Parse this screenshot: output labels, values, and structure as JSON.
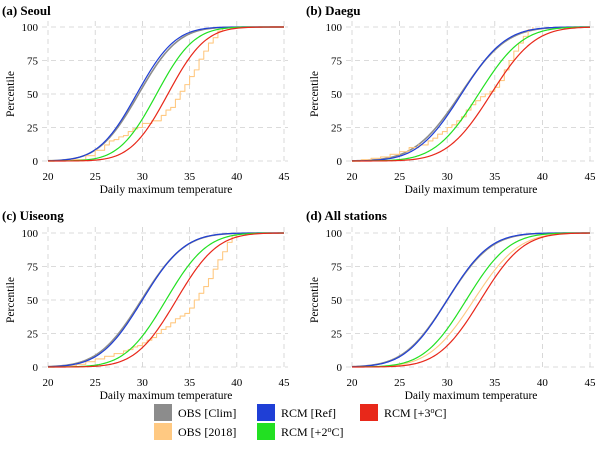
{
  "chart_data": {
    "type": "line",
    "xlabel": "Daily maximum temperature",
    "ylabel": "Percentile",
    "xlim": [
      20,
      45
    ],
    "ylim": [
      0,
      100
    ],
    "xticks": [
      20,
      25,
      30,
      35,
      40,
      45
    ],
    "yticks": [
      0,
      25,
      50,
      75,
      100
    ],
    "grid": true,
    "legend_position": "bottom",
    "legend": [
      {
        "key": "obs_clim",
        "label": "OBS [Clim]",
        "color": "#8c8c8c"
      },
      {
        "key": "obs_2018",
        "label": "OBS [2018]",
        "color": "#ffc982"
      },
      {
        "key": "rcm_ref",
        "label": "RCM [Ref]",
        "color": "#1f3fd6"
      },
      {
        "key": "rcm_2c",
        "label": "RCM [+2°C]",
        "label_main": "RCM [+2",
        "label_sup": "o",
        "label_end": "C]",
        "color": "#22e022"
      },
      {
        "key": "rcm_3c",
        "label": "RCM [+3°C]",
        "label_main": "RCM [+3",
        "label_sup": "o",
        "label_end": "C]",
        "color": "#e8281a"
      }
    ],
    "panels": [
      {
        "title": "(a) Seoul",
        "series": {
          "obs_clim": {
            "mean": 29.6,
            "sd": 3.3
          },
          "rcm_ref": {
            "mean": 29.4,
            "sd": 3.2
          },
          "rcm_2c": {
            "mean": 31.5,
            "sd": 3.1
          },
          "rcm_3c": {
            "mean": 32.7,
            "sd": 3.1
          },
          "obs_2018": {
            "points": [
              [
                21,
                0
              ],
              [
                22.5,
                1
              ],
              [
                24,
                4
              ],
              [
                25,
                8
              ],
              [
                26,
                12
              ],
              [
                26.5,
                15
              ],
              [
                27,
                16
              ],
              [
                27.5,
                18
              ],
              [
                28,
                19
              ],
              [
                28.5,
                22
              ],
              [
                29,
                24
              ],
              [
                29.5,
                25
              ],
              [
                30,
                28
              ],
              [
                30.5,
                28
              ],
              [
                31,
                30
              ],
              [
                31.5,
                30
              ],
              [
                32,
                34
              ],
              [
                32.5,
                38
              ],
              [
                33,
                40
              ],
              [
                33.5,
                46
              ],
              [
                34,
                52
              ],
              [
                34.5,
                57
              ],
              [
                35,
                63
              ],
              [
                35.5,
                68
              ],
              [
                36,
                76
              ],
              [
                36.5,
                82
              ],
              [
                37,
                88
              ],
              [
                37.5,
                92
              ],
              [
                38,
                97
              ],
              [
                38.5,
                99
              ],
              [
                39,
                100
              ]
            ]
          }
        }
      },
      {
        "title": "(b) Daegu",
        "series": {
          "obs_clim": {
            "mean": 31.4,
            "sd": 3.8
          },
          "rcm_ref": {
            "mean": 31.5,
            "sd": 3.6
          },
          "rcm_2c": {
            "mean": 33.3,
            "sd": 3.6
          },
          "rcm_3c": {
            "mean": 34.6,
            "sd": 3.6
          },
          "obs_2018": {
            "points": [
              [
                20.5,
                0
              ],
              [
                21,
                1
              ],
              [
                22,
                2
              ],
              [
                23,
                3
              ],
              [
                24,
                5
              ],
              [
                25,
                7
              ],
              [
                26,
                10
              ],
              [
                27,
                12
              ],
              [
                27.5,
                12
              ],
              [
                28,
                15
              ],
              [
                28.5,
                17
              ],
              [
                29,
                20
              ],
              [
                29.5,
                22
              ],
              [
                30,
                25
              ],
              [
                30.5,
                27
              ],
              [
                31,
                30
              ],
              [
                31.5,
                33
              ],
              [
                32,
                38
              ],
              [
                32.5,
                42
              ],
              [
                33,
                45
              ],
              [
                33.5,
                48
              ],
              [
                34,
                50
              ],
              [
                34.5,
                52
              ],
              [
                35,
                55
              ],
              [
                35.5,
                60
              ],
              [
                36,
                68
              ],
              [
                36.5,
                75
              ],
              [
                37,
                82
              ],
              [
                37.5,
                88
              ],
              [
                38,
                93
              ],
              [
                38.5,
                98
              ],
              [
                39,
                100
              ]
            ]
          }
        }
      },
      {
        "title": "(c) Uiseong",
        "series": {
          "obs_clim": {
            "mean": 29.9,
            "sd": 3.6
          },
          "rcm_ref": {
            "mean": 30.0,
            "sd": 3.5
          },
          "rcm_2c": {
            "mean": 32.5,
            "sd": 3.4
          },
          "rcm_3c": {
            "mean": 33.6,
            "sd": 3.4
          },
          "obs_2018": {
            "points": [
              [
                21,
                0
              ],
              [
                22,
                1
              ],
              [
                23,
                2
              ],
              [
                24,
                4
              ],
              [
                25,
                6
              ],
              [
                26,
                8
              ],
              [
                27,
                10
              ],
              [
                28,
                12
              ],
              [
                28.5,
                13
              ],
              [
                29,
                15
              ],
              [
                29.5,
                16
              ],
              [
                30,
                18
              ],
              [
                30.5,
                20
              ],
              [
                31,
                22
              ],
              [
                31.5,
                25
              ],
              [
                32,
                28
              ],
              [
                32.5,
                30
              ],
              [
                33,
                33
              ],
              [
                33.5,
                36
              ],
              [
                34,
                38
              ],
              [
                34.5,
                40
              ],
              [
                35,
                44
              ],
              [
                35.5,
                50
              ],
              [
                36,
                55
              ],
              [
                36.5,
                60
              ],
              [
                37,
                66
              ],
              [
                37.5,
                73
              ],
              [
                38,
                80
              ],
              [
                38.5,
                86
              ],
              [
                39,
                93
              ],
              [
                39.5,
                98
              ],
              [
                40,
                100
              ]
            ]
          }
        }
      },
      {
        "title": "(d) All stations",
        "series": {
          "obs_clim": {
            "mean": 30.0,
            "sd": 3.6
          },
          "rcm_ref": {
            "mean": 30.0,
            "sd": 3.5
          },
          "rcm_2c": {
            "mean": 32.0,
            "sd": 3.5
          },
          "rcm_3c": {
            "mean": 33.5,
            "sd": 3.5
          },
          "obs_2018": {
            "mean": 32.8,
            "sd": 3.7
          }
        }
      }
    ]
  }
}
